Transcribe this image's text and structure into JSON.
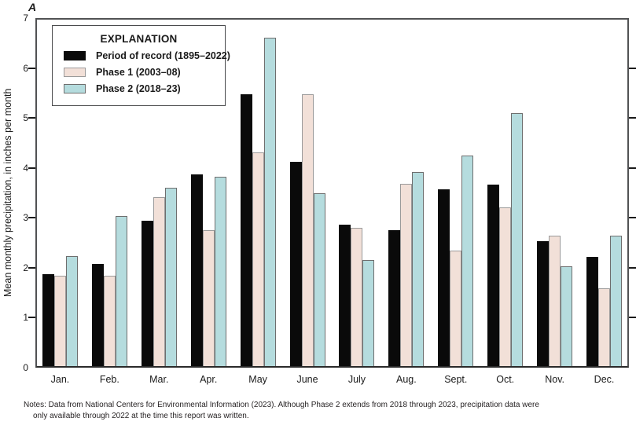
{
  "figure_label": "A",
  "legend": {
    "title": "EXPLANATION",
    "items": [
      {
        "label": "Period of record (1895–2022)",
        "color": "#0a0a0a",
        "border": "#0a0a0a"
      },
      {
        "label": "Phase 1 (2003–08)",
        "color": "#f2e0d8",
        "border": "#9a9a9a"
      },
      {
        "label": "Phase 2 (2018–23)",
        "color": "#b5dcde",
        "border": "#6e6e6e"
      }
    ]
  },
  "y_axis": {
    "title": "Mean monthly precipitation, in inches per month",
    "ticks": [
      0,
      1,
      2,
      3,
      4,
      5,
      6,
      7
    ]
  },
  "notes": {
    "line1": "Notes: Data from National Centers for Environmental Information (2023). Although Phase 2 extends from 2018 through 2023, precipitation data were",
    "line2": "only available through 2022 at the time this report was written."
  },
  "chart_data": {
    "type": "bar",
    "categories": [
      "Jan.",
      "Feb.",
      "Mar.",
      "Apr.",
      "May",
      "June",
      "July",
      "Aug.",
      "Sept.",
      "Oct.",
      "Nov.",
      "Dec."
    ],
    "series": [
      {
        "name": "Period of record (1895–2022)",
        "color": "#0a0a0a",
        "border": "#0a0a0a",
        "values": [
          1.85,
          2.07,
          2.93,
          3.87,
          5.5,
          4.13,
          2.85,
          2.74,
          3.57,
          3.67,
          2.53,
          2.21
        ]
      },
      {
        "name": "Phase 1 (2003–08)",
        "color": "#f2e0d8",
        "border": "#9a9a9a",
        "values": [
          1.82,
          1.82,
          3.41,
          2.75,
          4.31,
          5.5,
          2.79,
          3.68,
          2.33,
          3.2,
          2.63,
          1.57
        ]
      },
      {
        "name": "Phase 2 (2018–23)",
        "color": "#b5dcde",
        "border": "#6e6e6e",
        "values": [
          2.22,
          3.03,
          3.6,
          3.82,
          6.63,
          3.5,
          2.15,
          3.92,
          4.25,
          5.11,
          2.02,
          2.63
        ]
      }
    ],
    "ylabel": "Mean monthly precipitation, in inches per month",
    "ylim": [
      0,
      7
    ],
    "grid": false,
    "legend_position": "top-left"
  }
}
